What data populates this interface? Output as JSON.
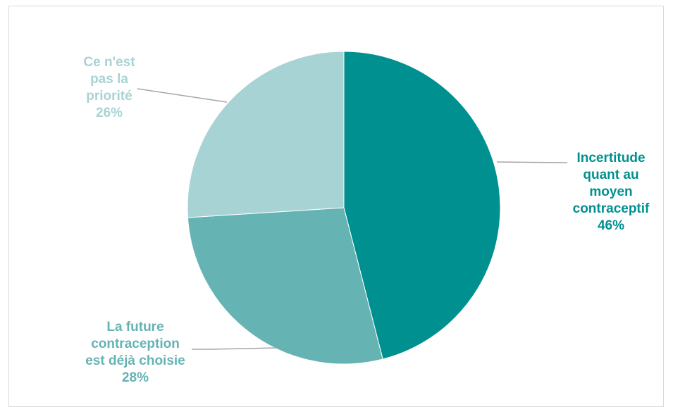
{
  "chart_data": {
    "type": "pie",
    "slices": [
      {
        "label_lines": [
          "Incertitude",
          "quant au",
          "moyen",
          "contraceptif"
        ],
        "value": 46,
        "value_label": "46%",
        "color": "#009090"
      },
      {
        "label_lines": [
          "La future",
          "contraception",
          "est déjà choisie"
        ],
        "value": 28,
        "value_label": "28%",
        "color": "#66b3b4"
      },
      {
        "label_lines": [
          "Ce n'est",
          "pas la",
          "priorité"
        ],
        "value": 26,
        "value_label": "26%",
        "color": "#a8d3d4"
      }
    ],
    "start": "12 o'clock, clockwise",
    "legend": "none (leader-line labels)"
  },
  "colors": {
    "leader_line": "#a6a6a6",
    "frame_border": "#d9d9d9"
  }
}
